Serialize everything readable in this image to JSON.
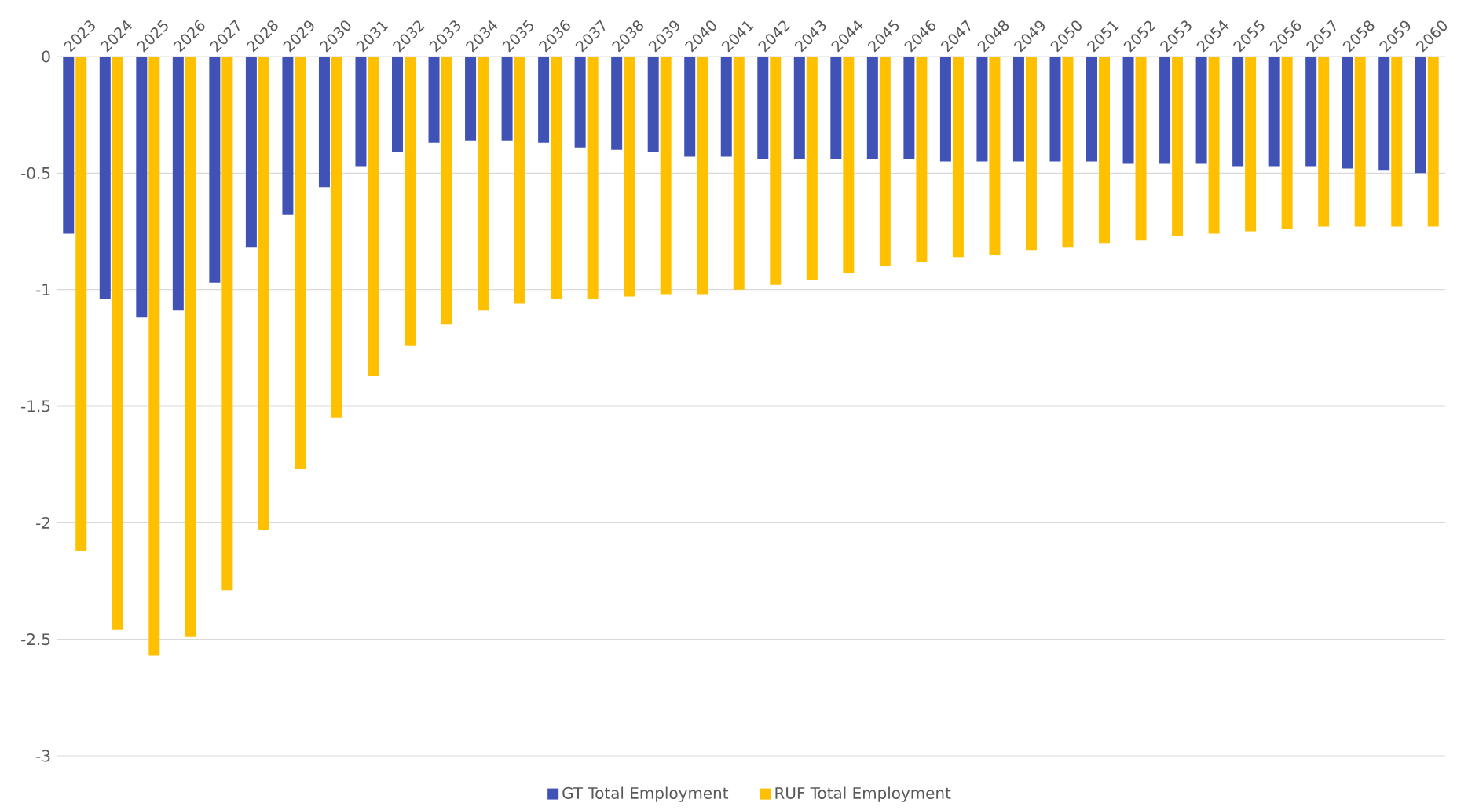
{
  "chart_data": {
    "type": "bar",
    "categories": [
      "2023",
      "2024",
      "2025",
      "2026",
      "2027",
      "2028",
      "2029",
      "2030",
      "2031",
      "2032",
      "2033",
      "2034",
      "2035",
      "2036",
      "2037",
      "2038",
      "2039",
      "2040",
      "2041",
      "2042",
      "2043",
      "2044",
      "2045",
      "2046",
      "2047",
      "2048",
      "2049",
      "2050",
      "2051",
      "2052",
      "2053",
      "2054",
      "2055",
      "2056",
      "2057",
      "2058",
      "2059",
      "2060"
    ],
    "series": [
      {
        "name": "GT Total Employment",
        "color": "#4052b5",
        "values": [
          -0.76,
          -1.04,
          -1.12,
          -1.09,
          -0.97,
          -0.82,
          -0.68,
          -0.56,
          -0.47,
          -0.41,
          -0.37,
          -0.36,
          -0.36,
          -0.37,
          -0.39,
          -0.4,
          -0.41,
          -0.43,
          -0.43,
          -0.44,
          -0.44,
          -0.44,
          -0.44,
          -0.44,
          -0.45,
          -0.45,
          -0.45,
          -0.45,
          -0.45,
          -0.46,
          -0.46,
          -0.46,
          -0.47,
          -0.47,
          -0.47,
          -0.48,
          -0.49,
          -0.5
        ]
      },
      {
        "name": "RUF Total Employment",
        "color": "#ffc000",
        "values": [
          -2.12,
          -2.46,
          -2.57,
          -2.49,
          -2.29,
          -2.03,
          -1.77,
          -1.55,
          -1.37,
          -1.24,
          -1.15,
          -1.09,
          -1.06,
          -1.04,
          -1.04,
          -1.03,
          -1.02,
          -1.02,
          -1.0,
          -0.98,
          -0.96,
          -0.93,
          -0.9,
          -0.88,
          -0.86,
          -0.85,
          -0.83,
          -0.82,
          -0.8,
          -0.79,
          -0.77,
          -0.76,
          -0.75,
          -0.74,
          -0.73,
          -0.73,
          -0.73,
          -0.73
        ]
      }
    ],
    "ylim": [
      -3,
      0
    ],
    "yticks": [
      0,
      -0.5,
      -1,
      -1.5,
      -2,
      -2.5,
      -3
    ],
    "grid": "y",
    "legend": "bottom"
  }
}
